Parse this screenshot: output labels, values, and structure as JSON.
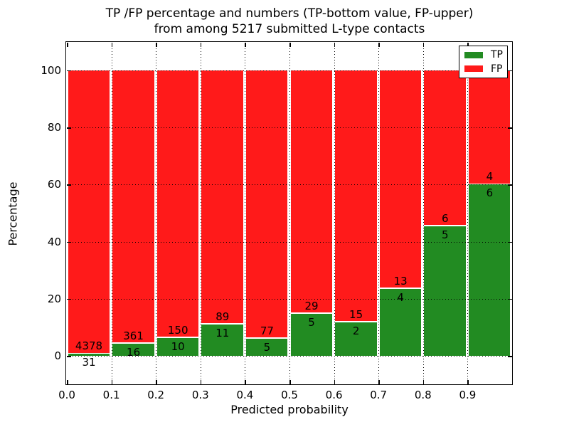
{
  "title": {
    "line1": "TP /FP percentage and numbers (TP-bottom value, FP-upper)",
    "line2": "from among 5217 submitted L-type contacts"
  },
  "legend": {
    "position": "upper right",
    "items": [
      {
        "label": "TP",
        "color": "#228b22"
      },
      {
        "label": "FP",
        "color": "#ff1a1a"
      }
    ]
  },
  "chart_data": {
    "type": "bar",
    "stacked": true,
    "title": "TP /FP percentage and numbers (TP-bottom value, FP-upper) from among 5217 submitted L-type contacts",
    "xlabel": "Predicted probability",
    "ylabel": "Percentage",
    "bin_edges": [
      0.0,
      0.1,
      0.2,
      0.3,
      0.4,
      0.5,
      0.6,
      0.7,
      0.8,
      0.9,
      1.0
    ],
    "bar_width": 0.1,
    "series": [
      {
        "name": "TP",
        "color": "#228b22",
        "counts": [
          31,
          16,
          10,
          11,
          5,
          5,
          2,
          4,
          5,
          6
        ]
      },
      {
        "name": "FP",
        "color": "#ff1a1a",
        "counts": [
          4378,
          361,
          150,
          89,
          77,
          29,
          15,
          13,
          6,
          4
        ]
      }
    ],
    "tp_percent_of_bin": [
      0.7,
      4.2,
      6.3,
      11.0,
      6.1,
      14.7,
      11.8,
      23.5,
      45.5,
      60.0
    ],
    "fp_percent_of_bin": [
      99.3,
      95.8,
      93.8,
      89.0,
      93.9,
      85.3,
      88.2,
      76.5,
      54.5,
      40.0
    ],
    "total_contacts": 5217,
    "xticks": [
      "0.0",
      "0.1",
      "0.2",
      "0.3",
      "0.4",
      "0.5",
      "0.6",
      "0.7",
      "0.8",
      "0.9"
    ],
    "yticks": [
      0,
      20,
      40,
      60,
      80,
      100
    ],
    "xlim": [
      0.0,
      1.0
    ],
    "ylim": [
      -10,
      110
    ],
    "grid": "dotted",
    "legend_position": "upper right",
    "annotation_note": "FP count printed above TP/FP boundary, TP count printed below it"
  }
}
